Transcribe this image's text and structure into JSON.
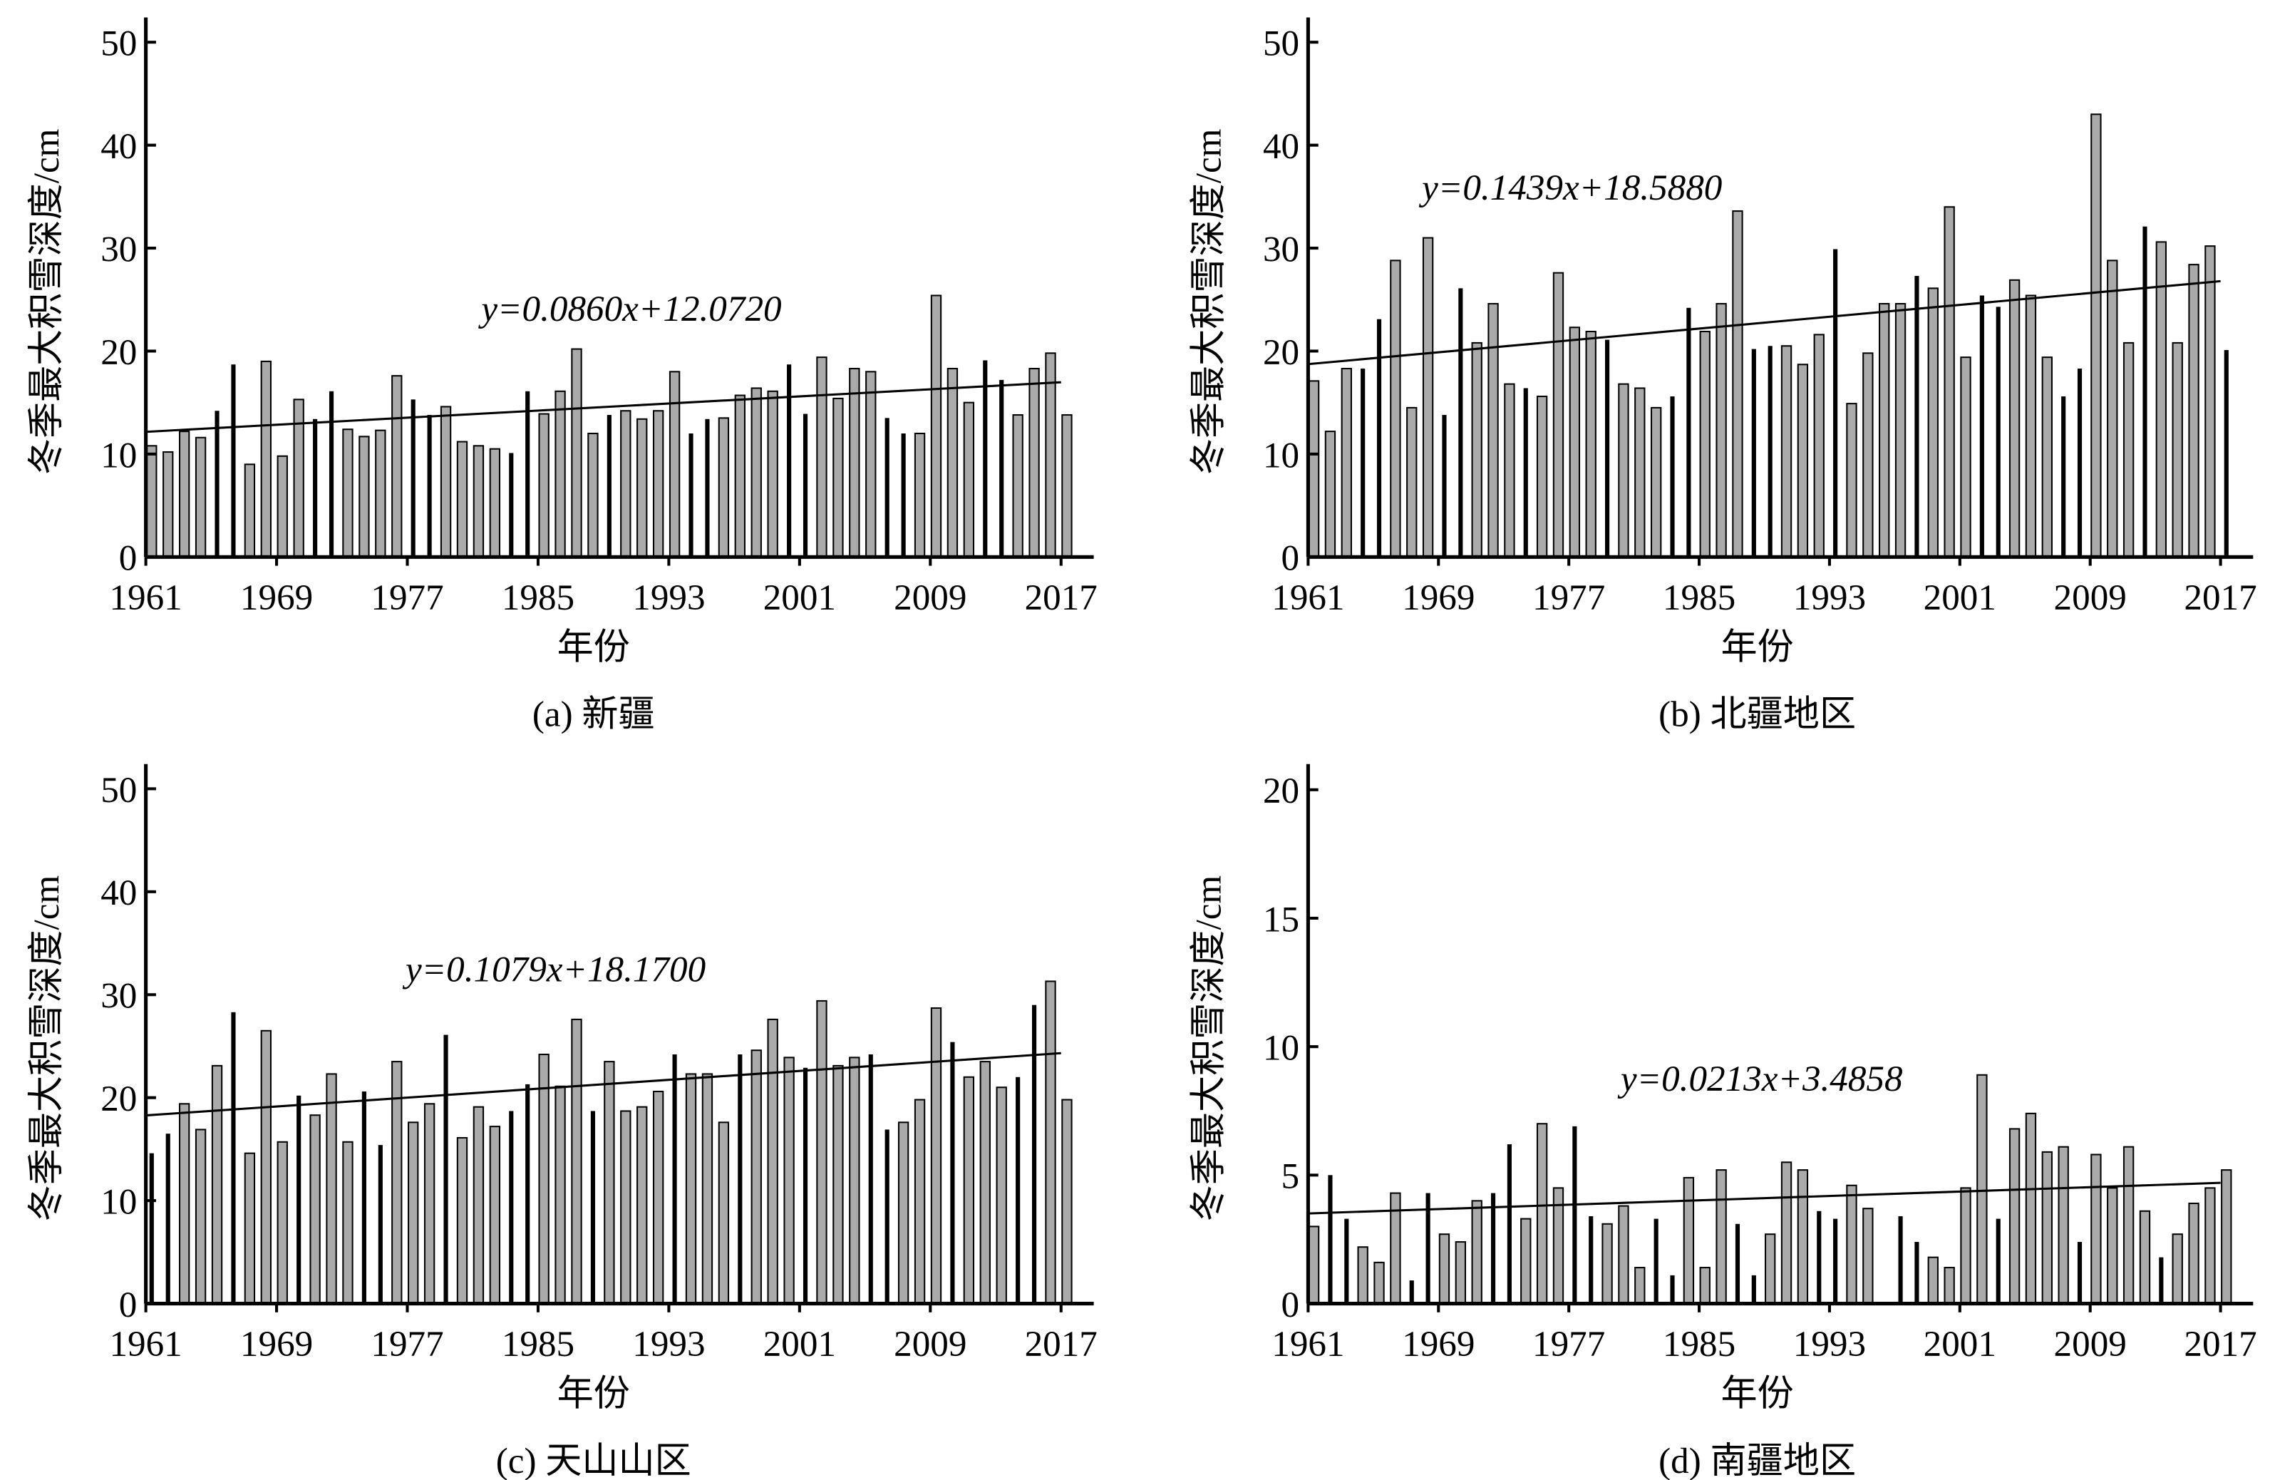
{
  "chart_data": [
    {
      "type": "bar",
      "title": "(a) 新疆",
      "xlabel": "年份",
      "ylabel": "冬季最大积雪深度/cm",
      "x": [
        1961,
        1962,
        1963,
        1964,
        1965,
        1966,
        1967,
        1968,
        1969,
        1970,
        1971,
        1972,
        1973,
        1974,
        1975,
        1976,
        1977,
        1978,
        1979,
        1980,
        1981,
        1982,
        1983,
        1984,
        1985,
        1986,
        1987,
        1988,
        1989,
        1990,
        1991,
        1992,
        1993,
        1994,
        1995,
        1996,
        1997,
        1998,
        1999,
        2000,
        2001,
        2002,
        2003,
        2004,
        2005,
        2006,
        2007,
        2008,
        2009,
        2010,
        2011,
        2012,
        2013,
        2014,
        2015,
        2016,
        2017
      ],
      "values": [
        10.8,
        10.2,
        12.2,
        11.6,
        14.2,
        18.7,
        9.0,
        19.0,
        9.8,
        15.3,
        13.4,
        16.1,
        12.4,
        11.7,
        12.3,
        17.6,
        15.3,
        13.8,
        14.6,
        11.2,
        10.8,
        10.5,
        10.1,
        16.1,
        13.9,
        16.1,
        20.2,
        12.0,
        13.8,
        14.2,
        13.4,
        14.2,
        18.0,
        12.0,
        13.4,
        13.5,
        15.7,
        16.4,
        16.1,
        18.7,
        13.9,
        19.4,
        15.4,
        18.3,
        18.0,
        13.5,
        12.0,
        12.0,
        25.4,
        18.3,
        15.0,
        19.1,
        17.2,
        13.8,
        18.3,
        19.8,
        13.8
      ],
      "colors": [
        "#aaa",
        "#aaa",
        "#aaa",
        "#aaa",
        "#000",
        "#000",
        "#aaa",
        "#aaa",
        "#aaa",
        "#aaa",
        "#000",
        "#000",
        "#aaa",
        "#aaa",
        "#aaa",
        "#aaa",
        "#000",
        "#000",
        "#aaa",
        "#aaa",
        "#aaa",
        "#aaa",
        "#000",
        "#000",
        "#aaa",
        "#aaa",
        "#aaa",
        "#aaa",
        "#000",
        "#aaa",
        "#aaa",
        "#aaa",
        "#aaa",
        "#000",
        "#000",
        "#aaa",
        "#aaa",
        "#aaa",
        "#aaa",
        "#000",
        "#000",
        "#aaa",
        "#aaa",
        "#aaa",
        "#aaa",
        "#000",
        "#000",
        "#aaa",
        "#aaa",
        "#aaa",
        "#aaa",
        "#000",
        "#000",
        "#aaa",
        "#aaa",
        "#aaa",
        "#aaa"
      ],
      "xlim": [
        1961,
        2019
      ],
      "ylim": [
        0,
        52.4
      ],
      "xticks": [
        1961,
        1969,
        1977,
        1985,
        1993,
        2001,
        2009,
        2017
      ],
      "yticks": [
        0,
        10,
        20,
        30,
        40,
        50
      ],
      "trend": {
        "equation": "y=0.0860x+12.0720",
        "slope": 0.086,
        "intercept": 12.072
      }
    },
    {
      "type": "bar",
      "title": "(b) 北疆地区",
      "xlabel": "年份",
      "ylabel": "冬季最大积雪深度/cm",
      "x": [
        1961,
        1962,
        1963,
        1964,
        1965,
        1966,
        1967,
        1968,
        1969,
        1970,
        1971,
        1972,
        1973,
        1974,
        1975,
        1976,
        1977,
        1978,
        1979,
        1980,
        1981,
        1982,
        1983,
        1984,
        1985,
        1986,
        1987,
        1988,
        1989,
        1990,
        1991,
        1992,
        1993,
        1994,
        1995,
        1996,
        1997,
        1998,
        1999,
        2000,
        2001,
        2002,
        2003,
        2004,
        2005,
        2006,
        2007,
        2008,
        2009,
        2010,
        2011,
        2012,
        2013,
        2014,
        2015,
        2016,
        2017
      ],
      "values": [
        17.1,
        12.2,
        18.3,
        18.3,
        23.1,
        28.8,
        14.5,
        31.0,
        13.8,
        26.1,
        20.8,
        24.6,
        16.8,
        16.4,
        15.6,
        27.6,
        22.3,
        21.9,
        21.1,
        16.8,
        16.4,
        14.5,
        15.6,
        24.2,
        21.9,
        24.6,
        33.6,
        20.2,
        20.5,
        20.5,
        18.7,
        21.6,
        29.9,
        14.9,
        19.8,
        24.6,
        24.6,
        27.3,
        26.1,
        34.0,
        19.4,
        25.4,
        24.3,
        26.9,
        25.4,
        19.4,
        15.6,
        18.3,
        43.0,
        28.8,
        20.8,
        32.1,
        30.6,
        20.8,
        28.4,
        30.2,
        20.1
      ],
      "colors": [
        "#aaa",
        "#aaa",
        "#aaa",
        "#000",
        "#000",
        "#aaa",
        "#aaa",
        "#aaa",
        "#000",
        "#000",
        "#aaa",
        "#aaa",
        "#aaa",
        "#000",
        "#aaa",
        "#aaa",
        "#aaa",
        "#aaa",
        "#000",
        "#aaa",
        "#aaa",
        "#aaa",
        "#000",
        "#000",
        "#aaa",
        "#aaa",
        "#aaa",
        "#000",
        "#000",
        "#aaa",
        "#aaa",
        "#aaa",
        "#000",
        "#aaa",
        "#aaa",
        "#aaa",
        "#aaa",
        "#000",
        "#aaa",
        "#aaa",
        "#aaa",
        "#000",
        "#000",
        "#aaa",
        "#aaa",
        "#aaa",
        "#000",
        "#000",
        "#aaa",
        "#aaa",
        "#aaa",
        "#000",
        "#aaa",
        "#aaa",
        "#aaa",
        "#aaa",
        "#000"
      ],
      "xlim": [
        1961,
        2019
      ],
      "ylim": [
        0,
        52.4
      ],
      "xticks": [
        1961,
        1969,
        1977,
        1985,
        1993,
        2001,
        2009,
        2017
      ],
      "yticks": [
        0,
        10,
        20,
        30,
        40,
        50
      ],
      "trend": {
        "equation": "y=0.1439x+18.5880",
        "slope": 0.1439,
        "intercept": 18.588
      }
    },
    {
      "type": "bar",
      "title": "(c) 天山山区",
      "xlabel": "年份",
      "ylabel": "冬季最大积雪深度/cm",
      "x": [
        1961,
        1962,
        1963,
        1964,
        1965,
        1966,
        1967,
        1968,
        1969,
        1970,
        1971,
        1972,
        1973,
        1974,
        1975,
        1976,
        1977,
        1978,
        1979,
        1980,
        1981,
        1982,
        1983,
        1984,
        1985,
        1986,
        1987,
        1988,
        1989,
        1990,
        1991,
        1992,
        1993,
        1994,
        1995,
        1996,
        1997,
        1998,
        1999,
        2000,
        2001,
        2002,
        2003,
        2004,
        2005,
        2006,
        2007,
        2008,
        2009,
        2010,
        2011,
        2012,
        2013,
        2014,
        2015,
        2016,
        2017
      ],
      "values": [
        14.6,
        16.5,
        19.4,
        16.9,
        23.1,
        28.3,
        14.6,
        26.5,
        15.7,
        20.2,
        18.3,
        22.3,
        15.7,
        20.6,
        15.4,
        23.5,
        17.6,
        19.4,
        26.1,
        16.1,
        19.1,
        17.2,
        18.7,
        21.3,
        24.2,
        21.1,
        27.6,
        18.7,
        23.5,
        18.7,
        19.1,
        20.6,
        24.2,
        22.3,
        22.3,
        17.6,
        24.2,
        24.6,
        27.6,
        23.9,
        22.9,
        29.4,
        23.1,
        23.9,
        24.2,
        16.9,
        17.6,
        19.8,
        28.7,
        25.4,
        22.0,
        23.5,
        21.0,
        22.0,
        29.0,
        31.3,
        19.8
      ],
      "colors": [
        "#000",
        "#000",
        "#aaa",
        "#aaa",
        "#aaa",
        "#000",
        "#aaa",
        "#aaa",
        "#aaa",
        "#000",
        "#aaa",
        "#aaa",
        "#aaa",
        "#000",
        "#000",
        "#aaa",
        "#aaa",
        "#aaa",
        "#000",
        "#aaa",
        "#aaa",
        "#aaa",
        "#000",
        "#000",
        "#aaa",
        "#aaa",
        "#aaa",
        "#000",
        "#aaa",
        "#aaa",
        "#aaa",
        "#aaa",
        "#000",
        "#aaa",
        "#aaa",
        "#aaa",
        "#000",
        "#aaa",
        "#aaa",
        "#aaa",
        "#000",
        "#aaa",
        "#aaa",
        "#aaa",
        "#000",
        "#000",
        "#aaa",
        "#aaa",
        "#aaa",
        "#000",
        "#aaa",
        "#aaa",
        "#aaa",
        "#000",
        "#000",
        "#aaa",
        "#aaa"
      ],
      "xlim": [
        1961,
        2019
      ],
      "ylim": [
        0,
        52.4
      ],
      "xticks": [
        1961,
        1969,
        1977,
        1985,
        1993,
        2001,
        2009,
        2017
      ],
      "yticks": [
        0,
        10,
        20,
        30,
        40,
        50
      ],
      "trend": {
        "equation": "y=0.1079x+18.1700",
        "slope": 0.1079,
        "intercept": 18.17
      }
    },
    {
      "type": "bar",
      "title": "(d) 南疆地区",
      "xlabel": "年份",
      "ylabel": "冬季最大积雪深度/cm",
      "x": [
        1961,
        1962,
        1963,
        1964,
        1965,
        1966,
        1967,
        1968,
        1969,
        1970,
        1971,
        1972,
        1973,
        1974,
        1975,
        1976,
        1977,
        1978,
        1979,
        1980,
        1981,
        1982,
        1983,
        1984,
        1985,
        1986,
        1987,
        1988,
        1989,
        1990,
        1991,
        1992,
        1993,
        1994,
        1995,
        1996,
        1997,
        1998,
        1999,
        2000,
        2001,
        2002,
        2003,
        2004,
        2005,
        2006,
        2007,
        2008,
        2009,
        2010,
        2011,
        2012,
        2013,
        2014,
        2015,
        2016,
        2017
      ],
      "values": [
        3.0,
        5.0,
        3.3,
        2.2,
        1.6,
        4.3,
        0.9,
        4.3,
        2.7,
        2.4,
        4.0,
        4.3,
        6.2,
        3.3,
        7.0,
        4.5,
        6.9,
        3.4,
        3.1,
        3.8,
        1.4,
        3.3,
        1.1,
        4.9,
        1.4,
        5.2,
        3.1,
        1.1,
        2.7,
        5.5,
        5.2,
        3.6,
        3.3,
        4.6,
        3.7,
        null,
        3.4,
        2.4,
        1.8,
        1.4,
        4.5,
        8.9,
        3.3,
        6.8,
        7.4,
        5.9,
        6.1,
        2.4,
        5.8,
        4.5,
        6.1,
        3.6,
        1.8,
        2.7,
        3.9,
        4.5,
        5.2
      ],
      "colors": [
        "#aaa",
        "#000",
        "#000",
        "#aaa",
        "#aaa",
        "#aaa",
        "#000",
        "#000",
        "#aaa",
        "#aaa",
        "#aaa",
        "#000",
        "#000",
        "#aaa",
        "#aaa",
        "#aaa",
        "#000",
        "#000",
        "#aaa",
        "#aaa",
        "#aaa",
        "#000",
        "#000",
        "#aaa",
        "#aaa",
        "#aaa",
        "#000",
        "#000",
        "#aaa",
        "#aaa",
        "#aaa",
        "#000",
        "#000",
        "#aaa",
        "#aaa",
        "#aaa",
        "#000",
        "#000",
        "#aaa",
        "#aaa",
        "#aaa",
        "#aaa",
        "#000",
        "#aaa",
        "#aaa",
        "#aaa",
        "#aaa",
        "#000",
        "#aaa",
        "#aaa",
        "#aaa",
        "#aaa",
        "#000",
        "#aaa",
        "#aaa",
        "#aaa",
        "#aaa"
      ],
      "xlim": [
        1961,
        2019
      ],
      "ylim": [
        0,
        21
      ],
      "xticks": [
        1961,
        1969,
        1977,
        1985,
        1993,
        2001,
        2009,
        2017
      ],
      "yticks": [
        0,
        5,
        10,
        15,
        20
      ],
      "trend": {
        "equation": "y=0.0213x+3.4858",
        "slope": 0.0213,
        "intercept": 3.4858
      }
    }
  ]
}
